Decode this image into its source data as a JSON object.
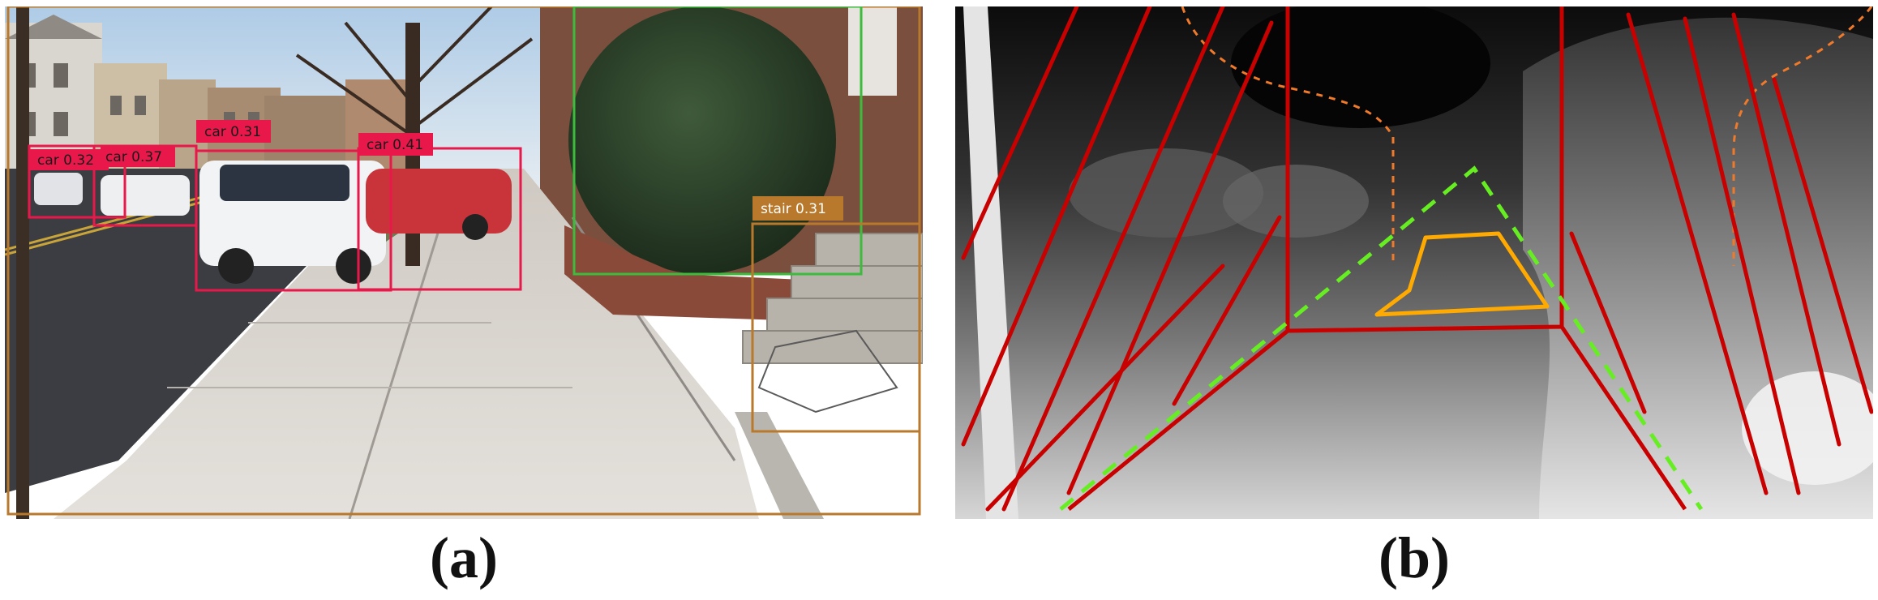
{
  "panels": {
    "a": {
      "caption": "(a)",
      "detections": [
        {
          "label": "car 0.32",
          "class": "car",
          "score": 0.32,
          "color": "#e8184b"
        },
        {
          "label": "car 0.37",
          "class": "car",
          "score": 0.37,
          "color": "#e8184b"
        },
        {
          "label": "car 0.31",
          "class": "car",
          "score": 0.31,
          "color": "#e8184b"
        },
        {
          "label": "car 0.41",
          "class": "car",
          "score": 0.41,
          "color": "#e8184b"
        },
        {
          "label": "stair 0.31",
          "class": "stair",
          "score": 0.31,
          "color": "#b9792c"
        }
      ],
      "box_colors": {
        "car": "#e8184b",
        "stair": "#b9792c",
        "vegetation": "#3dbb3d",
        "frame": "#b9792c"
      }
    },
    "b": {
      "caption": "(b)",
      "overlay_colors": {
        "wall_lines": "#c80000",
        "corridor": "#c80000",
        "dashed_path": "#66ee22",
        "target_region": "#ffaa00",
        "upper_contour": "#f07a2a"
      }
    }
  }
}
